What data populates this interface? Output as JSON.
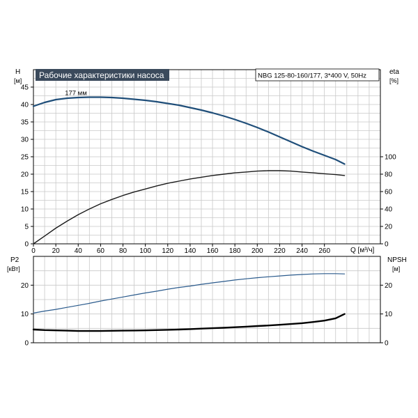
{
  "colors": {
    "head_curve": "#1f4e79",
    "p2_curve": "#2a5a8c",
    "eff_curve": "#1a1a1a",
    "npsh_curve": "#000000",
    "grid": "#c8c8c8",
    "title_bg": "#3b4a5c",
    "title_fg": "#ffffff"
  },
  "chart_data": [
    {
      "type": "line",
      "title": "Рабочие характеристики насоса",
      "subtitle": "NBG 125-80-160/177, 3*400 V, 50Hz",
      "xlabel": "Q [м³/ч]",
      "xticks": [
        0,
        20,
        40,
        60,
        80,
        100,
        120,
        140,
        160,
        180,
        200,
        220,
        240,
        260
      ],
      "xlim": [
        0,
        310
      ],
      "ylabel_left": [
        "H",
        "[м]"
      ],
      "ylim_left": [
        0,
        50
      ],
      "yticks_left": [
        0,
        5,
        10,
        15,
        20,
        25,
        30,
        35,
        40,
        45
      ],
      "ylabel_right": [
        "eta",
        "[%]"
      ],
      "ylim_right": [
        0,
        200
      ],
      "yticks_right": [
        0,
        20,
        40,
        60,
        80,
        100
      ],
      "grid": true,
      "annotations": [
        {
          "text": "177 мм",
          "x": 30,
          "y": 42.5
        }
      ],
      "series": [
        {
          "axis": "left",
          "color_key": "head_curve",
          "width": 2.2,
          "x": [
            0,
            10,
            20,
            30,
            40,
            50,
            60,
            70,
            80,
            90,
            100,
            110,
            120,
            130,
            140,
            150,
            160,
            170,
            180,
            190,
            200,
            210,
            220,
            230,
            240,
            250,
            260,
            270,
            278
          ],
          "values": [
            39.5,
            40.6,
            41.4,
            41.8,
            42.0,
            42.1,
            42.1,
            42.0,
            41.8,
            41.5,
            41.2,
            40.8,
            40.3,
            39.8,
            39.1,
            38.4,
            37.6,
            36.7,
            35.7,
            34.6,
            33.4,
            32.1,
            30.7,
            29.3,
            27.9,
            26.6,
            25.4,
            24.2,
            22.9
          ]
        },
        {
          "axis": "right",
          "color_key": "eff_curve",
          "width": 1.4,
          "x": [
            0,
            10,
            20,
            30,
            40,
            50,
            60,
            70,
            80,
            90,
            100,
            110,
            120,
            130,
            140,
            150,
            160,
            170,
            180,
            190,
            200,
            210,
            220,
            230,
            240,
            250,
            260,
            270,
            278
          ],
          "values": [
            0,
            9,
            18,
            26,
            33.5,
            40,
            46,
            51,
            55.5,
            59.5,
            63,
            66.5,
            69.5,
            72,
            74.5,
            76.5,
            78.5,
            80,
            81.5,
            82.5,
            83.5,
            84,
            84,
            83.5,
            82.5,
            81.5,
            80.5,
            79.5,
            78.5
          ]
        }
      ]
    },
    {
      "type": "line",
      "xlim": [
        0,
        310
      ],
      "ylabel_left": [
        "P2",
        "[кВт]"
      ],
      "ylim_left": [
        0,
        30
      ],
      "yticks_left": [
        0,
        10,
        20
      ],
      "ylabel_right": [
        "NPSH",
        "[м]"
      ],
      "ylim_right": [
        0,
        30
      ],
      "yticks_right": [
        0,
        10,
        20
      ],
      "grid": true,
      "series": [
        {
          "axis": "left",
          "color_key": "p2_curve",
          "width": 1.2,
          "x": [
            0,
            10,
            20,
            30,
            40,
            50,
            60,
            70,
            80,
            90,
            100,
            110,
            120,
            130,
            140,
            150,
            160,
            170,
            180,
            190,
            200,
            210,
            220,
            230,
            240,
            250,
            260,
            270,
            278
          ],
          "values": [
            10.3,
            11.0,
            11.6,
            12.3,
            13.0,
            13.7,
            14.5,
            15.2,
            15.9,
            16.6,
            17.3,
            17.9,
            18.6,
            19.2,
            19.7,
            20.3,
            20.8,
            21.3,
            21.8,
            22.2,
            22.6,
            22.9,
            23.2,
            23.5,
            23.7,
            23.9,
            24.0,
            24.0,
            23.9
          ]
        },
        {
          "axis": "right",
          "color_key": "npsh_curve",
          "width": 2.4,
          "x": [
            0,
            10,
            20,
            30,
            40,
            50,
            60,
            70,
            80,
            90,
            100,
            110,
            120,
            130,
            140,
            150,
            160,
            170,
            180,
            190,
            200,
            210,
            220,
            230,
            240,
            250,
            260,
            270,
            278
          ],
          "values": [
            4.6,
            4.4,
            4.3,
            4.2,
            4.1,
            4.1,
            4.1,
            4.15,
            4.2,
            4.25,
            4.3,
            4.4,
            4.5,
            4.6,
            4.75,
            4.9,
            5.05,
            5.2,
            5.4,
            5.6,
            5.8,
            6.0,
            6.25,
            6.5,
            6.8,
            7.2,
            7.7,
            8.5,
            10.0
          ]
        }
      ]
    }
  ]
}
